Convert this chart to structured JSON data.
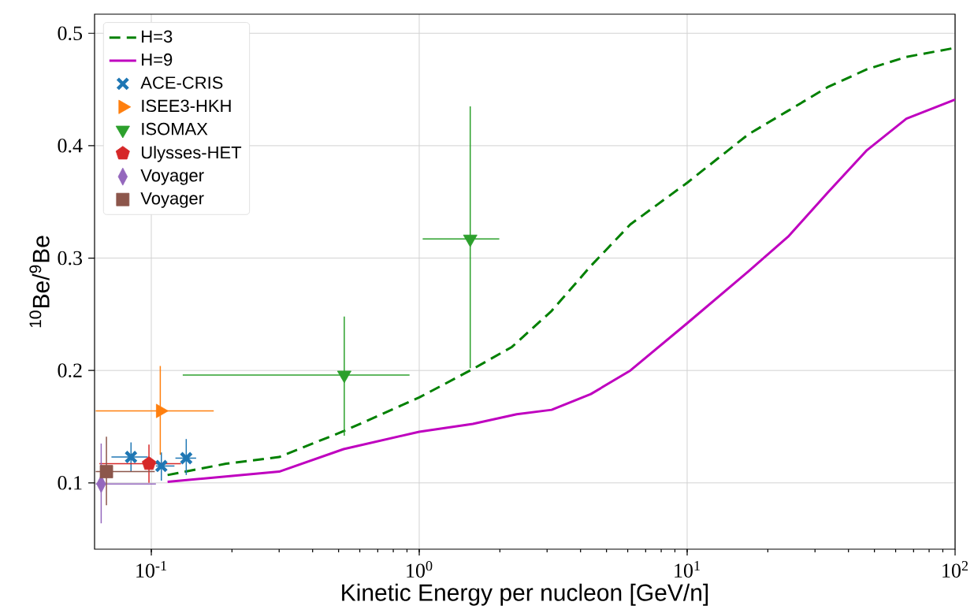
{
  "chart_data": {
    "type": "scatter",
    "xlabel": "Kinetic Energy per nucleon [GeV/n]",
    "ylabel": "$^{10}$Be/$^{9}$Be",
    "log": "x",
    "grid": true,
    "legend": "top left",
    "xlim": [
      0.0614,
      100
    ],
    "ylim": [
      0.041,
      0.517
    ],
    "xticks": [
      {
        "value": 0.1,
        "label": "10$^{-1}$"
      },
      {
        "value": 1,
        "label": "10$^{0}$"
      },
      {
        "value": 10,
        "label": "10$^{1}$"
      },
      {
        "value": 100,
        "label": "10$^{2}$"
      }
    ],
    "yticks": [
      0.1,
      0.2,
      0.3,
      0.4,
      0.5
    ],
    "series": [
      {
        "name": "H=3",
        "type": "line",
        "line_style": "dashed",
        "marker": "none",
        "color": "#008000",
        "x": [
          0.115,
          0.19,
          0.3,
          0.522,
          1,
          1.55,
          2.22,
          3.12,
          4.37,
          6.14,
          10,
          16.9,
          23.8,
          33.4,
          46.9,
          65.8,
          100
        ],
        "values": [
          0.107,
          0.117,
          0.123,
          0.146,
          0.176,
          0.2,
          0.221,
          0.253,
          0.293,
          0.33,
          0.367,
          0.41,
          0.431,
          0.452,
          0.468,
          0.479,
          0.487
        ]
      },
      {
        "name": "H=9",
        "type": "line",
        "line_style": "solid",
        "marker": "none",
        "color": "#bf00bf",
        "x": [
          0.115,
          0.3,
          0.522,
          1,
          1.585,
          2.31,
          3.12,
          4.37,
          6.14,
          10,
          16.9,
          23.8,
          33.4,
          46.9,
          65.8,
          100
        ],
        "values": [
          0.101,
          0.11,
          0.13,
          0.1455,
          0.1525,
          0.161,
          0.165,
          0.179,
          0.2,
          0.242,
          0.288,
          0.319,
          0.358,
          0.396,
          0.424,
          0.441
        ]
      },
      {
        "name": "ACE-CRIS",
        "marker": "cross",
        "color": "#1f77b4",
        "x": [
          0.084,
          0.109,
          0.135
        ],
        "values": [
          0.123,
          0.115,
          0.122
        ],
        "errors": [
          [
            0.11,
            0.136
          ],
          [
            0.102,
            0.127
          ],
          [
            0.107,
            0.139
          ]
        ],
        "xerrors": [
          [
            0.071,
            0.097
          ],
          [
            0.104,
            0.122
          ],
          [
            0.123,
            0.147
          ]
        ]
      },
      {
        "name": "ISEE3-HKH",
        "marker": "triangle-right",
        "color": "#ff7f0e",
        "x": [
          0.108
        ],
        "values": [
          0.164
        ],
        "errors": [
          [
            0.125,
            0.204
          ]
        ],
        "xerrors": [
          [
            0.062,
            0.171
          ]
        ]
      },
      {
        "name": "ISOMAX",
        "marker": "triangle-down",
        "color": "#2ca02c",
        "x": [
          0.525,
          1.55
        ],
        "values": [
          0.196,
          0.317
        ],
        "errors": [
          [
            0.142,
            0.248
          ],
          [
            0.202,
            0.435
          ]
        ],
        "xerrors": [
          [
            0.131,
            0.92
          ],
          [
            1.03,
            1.99
          ]
        ]
      },
      {
        "name": "Ulysses-HET",
        "marker": "circle",
        "color": "#d62728",
        "x": [
          0.098
        ],
        "values": [
          0.117
        ],
        "errors": [
          [
            0.1,
            0.134
          ]
        ],
        "xerrors": [
          [
            0.064,
            0.129
          ]
        ]
      },
      {
        "name": "Voyager",
        "marker": "diamond",
        "color": "#9467bd",
        "x": [
          0.065
        ],
        "values": [
          0.099
        ],
        "errors": [
          [
            0.064,
            0.135
          ]
        ],
        "xerrors": [
          [
            0.062,
            0.104
          ]
        ]
      },
      {
        "name": "Voyager",
        "marker": "square",
        "color": "#8c564b",
        "x": [
          0.068
        ],
        "values": [
          0.11
        ],
        "errors": [
          [
            0.08,
            0.141
          ]
        ],
        "xerrors": [
          [
            0.062,
            0.103
          ]
        ]
      }
    ]
  }
}
